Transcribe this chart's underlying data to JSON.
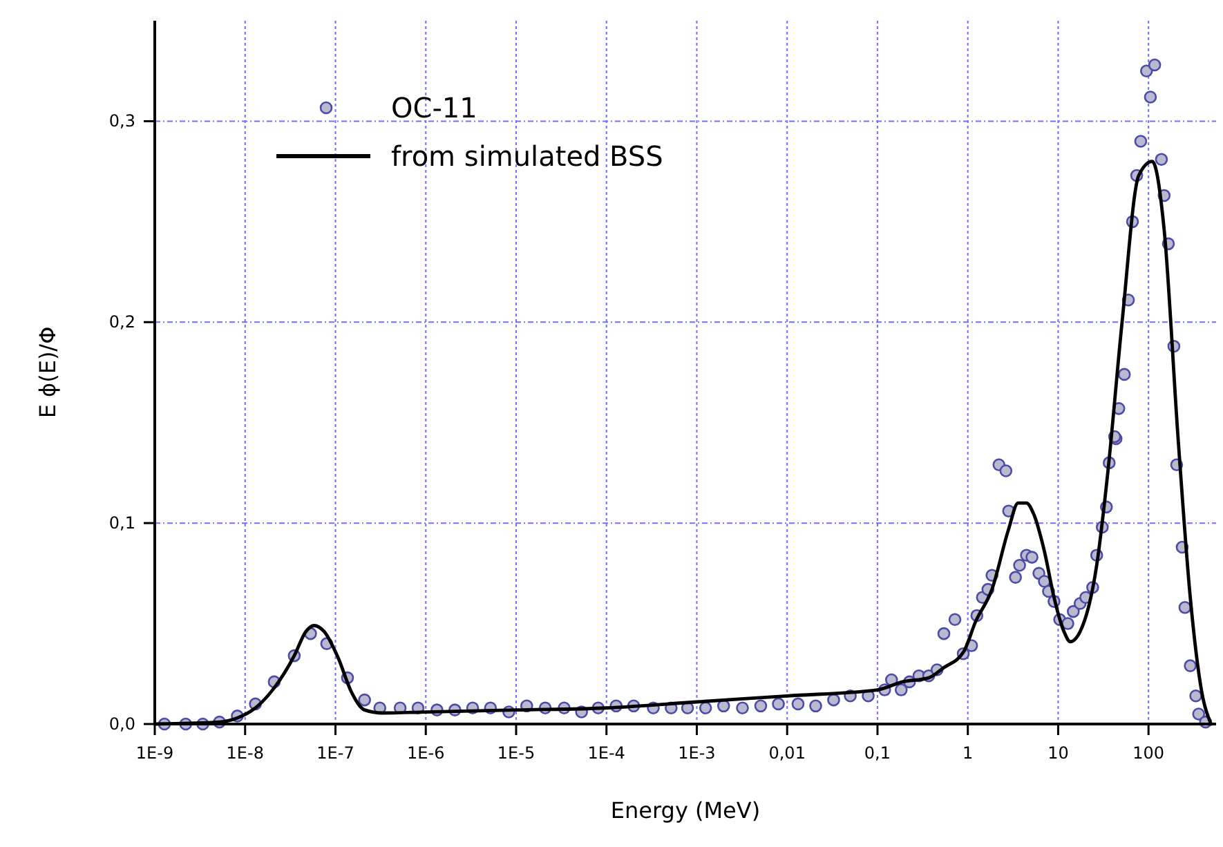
{
  "chart_data": {
    "type": "scatter",
    "xlabel": "Energy (MeV)",
    "ylabel": "E ϕ(E)/Φ",
    "log": "x",
    "grid": true,
    "legend": "top left",
    "xlim": [
      1e-09,
      560
    ],
    "ylim": [
      0,
      0.35
    ],
    "xticks": [
      {
        "value": 1e-09,
        "label": "1E-9"
      },
      {
        "value": 1e-08,
        "label": "1E-8"
      },
      {
        "value": 1e-07,
        "label": "1E-7"
      },
      {
        "value": 1e-06,
        "label": "1E-6"
      },
      {
        "value": 1e-05,
        "label": "1E-5"
      },
      {
        "value": 0.0001,
        "label": "1E-4"
      },
      {
        "value": 0.001,
        "label": "1E-3"
      },
      {
        "value": 0.01,
        "label": "0,01"
      },
      {
        "value": 0.1,
        "label": "0,1"
      },
      1,
      10,
      100
    ],
    "yticks": [
      {
        "value": 0,
        "label": "0,0"
      },
      {
        "value": 0.1,
        "label": "0,1"
      },
      {
        "value": 0.2,
        "label": "0,2"
      },
      {
        "value": 0.3,
        "label": "0,3"
      }
    ],
    "series": [
      {
        "name": "OC-11",
        "marker": "circle",
        "color": "#4b4ba8",
        "x": [
          1.28e-09,
          2.2e-09,
          3.4e-09,
          5.2e-09,
          8.2e-09,
          1.3e-08,
          2.1e-08,
          3.5e-08,
          5.3e-08,
          8e-08,
          1.36e-07,
          2.1e-07,
          3.1e-07,
          5.2e-07,
          8.2e-07,
          1.33e-06,
          2.1e-06,
          3.3e-06,
          5.2e-06,
          8.3e-06,
          1.31e-05,
          2.1e-05,
          3.4e-05,
          5.3e-05,
          8.1e-05,
          0.000128,
          0.0002,
          0.00033,
          0.00052,
          0.00079,
          0.00125,
          0.00198,
          0.0032,
          0.0051,
          0.008,
          0.0132,
          0.0207,
          0.0327,
          0.05,
          0.079,
          0.12,
          0.143,
          0.183,
          0.226,
          0.288,
          0.369,
          0.456,
          0.543,
          0.72,
          0.89,
          1.1,
          1.26,
          1.45,
          1.67,
          1.85,
          2.21,
          2.64,
          2.83,
          3.37,
          3.74,
          4.46,
          5.13,
          6.12,
          7.04,
          7.82,
          9.0,
          10.4,
          12.8,
          14.7,
          17.5,
          20.2,
          24.1,
          26.7,
          30.8,
          34.2,
          36.7,
          43.7,
          42.2,
          46.9,
          54,
          59.9,
          66.5,
          74,
          82,
          95,
          105,
          117,
          139,
          149,
          166,
          191,
          205,
          236,
          253,
          290,
          334,
          359,
          428
        ],
        "values": [
          0,
          0,
          0,
          0.001,
          0.004,
          0.01,
          0.021,
          0.034,
          0.045,
          0.04,
          0.023,
          0.012,
          0.008,
          0.008,
          0.008,
          0.007,
          0.007,
          0.008,
          0.008,
          0.006,
          0.009,
          0.008,
          0.008,
          0.006,
          0.008,
          0.009,
          0.009,
          0.008,
          0.008,
          0.008,
          0.008,
          0.009,
          0.008,
          0.009,
          0.01,
          0.01,
          0.009,
          0.012,
          0.014,
          0.014,
          0.017,
          0.022,
          0.017,
          0.021,
          0.024,
          0.024,
          0.027,
          0.045,
          0.052,
          0.035,
          0.039,
          0.054,
          0.063,
          0.067,
          0.074,
          0.129,
          0.126,
          0.106,
          0.073,
          0.079,
          0.084,
          0.083,
          0.075,
          0.071,
          0.066,
          0.061,
          0.052,
          0.05,
          0.056,
          0.06,
          0.063,
          0.068,
          0.084,
          0.098,
          0.108,
          0.13,
          0.142,
          0.143,
          0.157,
          0.174,
          0.211,
          0.25,
          0.273,
          0.29,
          0.325,
          0.312,
          0.328,
          0.281,
          0.263,
          0.239,
          0.188,
          0.129,
          0.088,
          0.058,
          0.029,
          0.014,
          0.005,
          0.001
        ]
      },
      {
        "name": "from simulated BSS",
        "type": "line",
        "line_style": "solid",
        "marker": "none",
        "color": "#000000",
        "x": [
          1e-09,
          5.2e-09,
          8.2e-09,
          1.3e-08,
          2.1e-08,
          3.5e-08,
          4.7e-08,
          5.8e-08,
          7.5e-08,
          1.07e-07,
          1.5e-07,
          2.1e-07,
          3.3e-07,
          1e-06,
          1e-05,
          0.0001,
          0.001,
          0.01,
          0.1,
          0.19,
          0.37,
          0.54,
          0.9,
          1.22,
          1.85,
          2.83,
          3.6,
          4.46,
          5.3,
          7.04,
          9.0,
          11.6,
          13.6,
          17.5,
          26.7,
          35.4,
          51,
          78,
          110,
          149,
          212,
          290,
          385,
          492
        ],
        "values": [
          0,
          0.001,
          0.003,
          0.008,
          0.018,
          0.034,
          0.046,
          0.049,
          0.046,
          0.033,
          0.016,
          0.007,
          0.0055,
          0.006,
          0.007,
          0.008,
          0.011,
          0.014,
          0.017,
          0.021,
          0.023,
          0.028,
          0.036,
          0.051,
          0.067,
          0.097,
          0.11,
          0.11,
          0.105,
          0.086,
          0.063,
          0.046,
          0.041,
          0.046,
          0.079,
          0.125,
          0.2,
          0.273,
          0.28,
          0.246,
          0.143,
          0.063,
          0.017,
          0
        ]
      }
    ]
  }
}
